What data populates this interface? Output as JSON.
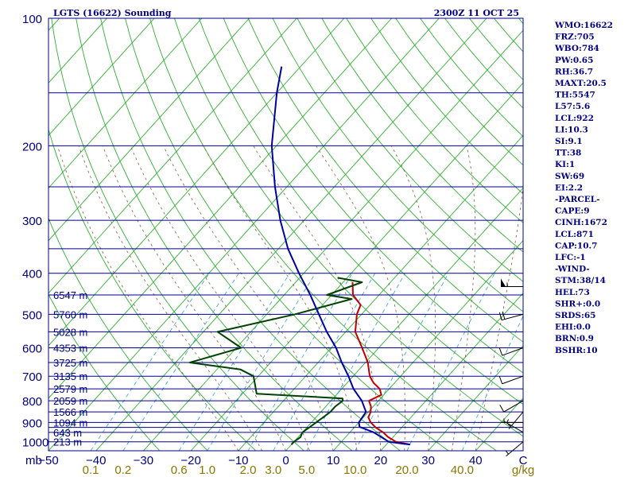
{
  "chart_data": {
    "type": "line",
    "title": "LGTS (16622) Sounding",
    "valid_time": "2300Z 11 OCT 25",
    "pressure_unit": "mb",
    "mixing_unit": "g/kg",
    "plim": [
      100,
      1050
    ],
    "xlim": [
      -50,
      50
    ],
    "skew": 35,
    "pressure_ticks": [
      100,
      200,
      300,
      400,
      500,
      600,
      700,
      800,
      900,
      1000
    ],
    "isobar_lines": [
      100,
      150,
      200,
      250,
      300,
      350,
      400,
      450,
      500,
      550,
      600,
      650,
      700,
      750,
      800,
      850,
      900,
      925,
      950,
      1000
    ],
    "temp_ticks": [
      -50,
      -40,
      -30,
      -20,
      -10,
      0,
      10,
      20,
      30,
      40,
      50
    ],
    "temp_tick_labels": [
      "−50",
      "−40",
      "−30",
      "−20",
      "−10",
      "0",
      "10",
      "20",
      "30",
      "40",
      "C"
    ],
    "mixing_ratios": [
      {
        "w": 0.1,
        "label": "0.1"
      },
      {
        "w": 0.2,
        "label": "0.2"
      },
      {
        "w": 0.6,
        "label": "0.6"
      },
      {
        "w": 1.0,
        "label": "1.0"
      },
      {
        "w": 2.0,
        "label": "2.0"
      },
      {
        "w": 3.0,
        "label": "3.0"
      },
      {
        "w": 5.0,
        "label": "5.0"
      },
      {
        "w": 10.0,
        "label": "10.0"
      },
      {
        "w": 20.0,
        "label": "20.0"
      },
      {
        "w": 40.0,
        "label": "40.0"
      }
    ],
    "height_labels": [
      {
        "p": 450,
        "label": "6547 m"
      },
      {
        "p": 500,
        "label": "5760 m"
      },
      {
        "p": 550,
        "label": "5028 m"
      },
      {
        "p": 600,
        "label": "4353 m"
      },
      {
        "p": 650,
        "label": "3725 m"
      },
      {
        "p": 700,
        "label": "3135 m"
      },
      {
        "p": 750,
        "label": "2579 m"
      },
      {
        "p": 800,
        "label": "2059 m"
      },
      {
        "p": 850,
        "label": "1566 m"
      },
      {
        "p": 900,
        "label": "1094 m"
      },
      {
        "p": 950,
        "label": "643 m"
      },
      {
        "p": 1000,
        "label": "213 m"
      }
    ],
    "series": [
      {
        "name": "Temperature",
        "color": "#c00000",
        "points": [
          [
            1015,
            25
          ],
          [
            1000,
            21.5
          ],
          [
            975,
            19
          ],
          [
            950,
            17
          ],
          [
            925,
            14.5
          ],
          [
            900,
            12.5
          ],
          [
            875,
            11
          ],
          [
            850,
            10.5
          ],
          [
            825,
            9.5
          ],
          [
            800,
            8
          ],
          [
            775,
            9.5
          ],
          [
            750,
            8
          ],
          [
            725,
            5.5
          ],
          [
            700,
            3.5
          ],
          [
            650,
            0.5
          ],
          [
            600,
            -3.5
          ],
          [
            550,
            -8
          ],
          [
            500,
            -11
          ],
          [
            475,
            -12
          ],
          [
            450,
            -15.5
          ],
          [
            420,
            -18
          ]
        ]
      },
      {
        "name": "Dewpoint",
        "color": "#004000",
        "points": [
          [
            1015,
            0
          ],
          [
            1000,
            0
          ],
          [
            975,
            0.5
          ],
          [
            950,
            0
          ],
          [
            925,
            0.5
          ],
          [
            900,
            1
          ],
          [
            875,
            1.5
          ],
          [
            850,
            2
          ],
          [
            825,
            2
          ],
          [
            800,
            2.5
          ],
          [
            790,
            2
          ],
          [
            770,
            -17
          ],
          [
            700,
            -21
          ],
          [
            675,
            -25
          ],
          [
            650,
            -37
          ],
          [
            600,
            -29
          ],
          [
            550,
            -37
          ],
          [
            500,
            -24
          ],
          [
            460,
            -15
          ],
          [
            450,
            -21
          ],
          [
            420,
            -16
          ],
          [
            410,
            -22
          ]
        ]
      },
      {
        "name": "Parcel",
        "color": "#0000a0",
        "points": [
          [
            1015,
            25
          ],
          [
            1000,
            20
          ],
          [
            950,
            15
          ],
          [
            922,
            11
          ],
          [
            900,
            10
          ],
          [
            850,
            9.5
          ],
          [
            800,
            6.5
          ],
          [
            750,
            2.5
          ],
          [
            700,
            -1
          ],
          [
            650,
            -5
          ],
          [
            600,
            -9
          ],
          [
            550,
            -14
          ],
          [
            500,
            -19
          ],
          [
            450,
            -24.5
          ],
          [
            400,
            -31
          ],
          [
            350,
            -38
          ],
          [
            300,
            -45
          ],
          [
            250,
            -52.5
          ],
          [
            200,
            -61
          ],
          [
            150,
            -70
          ],
          [
            130,
            -74
          ]
        ]
      }
    ],
    "wind_barbs": [
      {
        "p": 430,
        "dir": 270,
        "spd": 55
      },
      {
        "p": 500,
        "dir": 255,
        "spd": 20
      },
      {
        "p": 600,
        "dir": 250,
        "spd": 10
      },
      {
        "p": 700,
        "dir": 250,
        "spd": 10
      },
      {
        "p": 800,
        "dir": 240,
        "spd": 10
      },
      {
        "p": 850,
        "dir": 220,
        "spd": 5
      },
      {
        "p": 900,
        "dir": 270,
        "spd": 5
      },
      {
        "p": 950,
        "dir": 300,
        "spd": 5
      },
      {
        "p": 1000,
        "dir": 230,
        "spd": 5
      }
    ],
    "indices": [
      "WMO:16622",
      "FRZ:705",
      "WBO:784",
      "PW:0.65",
      "RH:36.7",
      "MAXT:20.5",
      "TH:5547",
      "L57:5.6",
      "LCL:922",
      "LI:10.3",
      "SI:9.1",
      "TT:38",
      "KI:1",
      "SW:69",
      "EI:2.2",
      "-PARCEL-",
      "CAPE:9",
      "CINH:1672",
      "LCL:871",
      "CAP:10.7",
      "LFC:-1",
      "-WIND-",
      "STM:38/14",
      "HEL:73",
      "SHR+:0.0",
      "SRDS:65",
      "EHI:0.0",
      "BRN:0.9",
      "BSHR:10"
    ]
  }
}
